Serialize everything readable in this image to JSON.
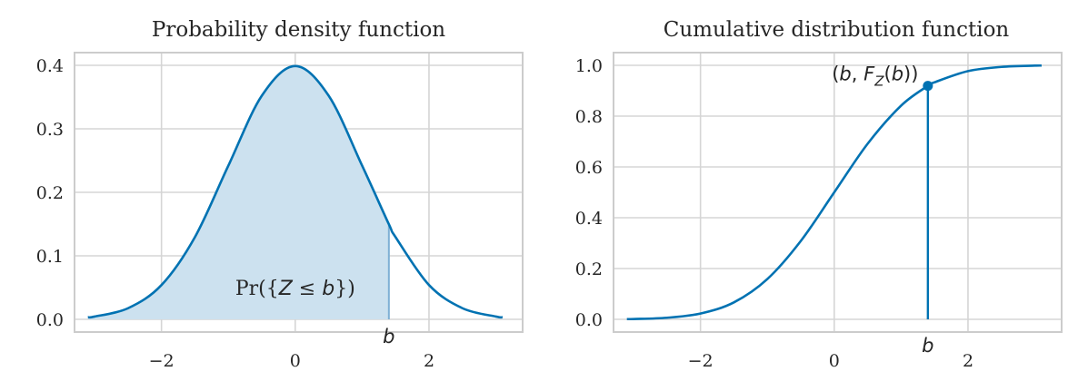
{
  "chart_data": [
    {
      "type": "area",
      "title": "Probability density function",
      "xlabel": "",
      "ylabel": "",
      "xlim": [
        -3.3,
        3.4
      ],
      "ylim": [
        -0.02,
        0.42
      ],
      "x_ticks": [
        -2,
        0,
        2
      ],
      "x_tick_labels": [
        "−2",
        "0",
        "2"
      ],
      "y_ticks": [
        0.0,
        0.1,
        0.2,
        0.3,
        0.4
      ],
      "y_tick_labels": [
        "0.0",
        "0.1",
        "0.2",
        "0.3",
        "0.4"
      ],
      "grid": true,
      "series": [
        {
          "x": [
            -3.1,
            -3.0,
            -2.5,
            -2.0,
            -1.5,
            -1.0,
            -0.5,
            0.0,
            0.5,
            1.0,
            1.4,
            1.5,
            2.0,
            2.5,
            3.0,
            3.1
          ],
          "values": [
            0.0033,
            0.0044,
            0.0175,
            0.054,
            0.1295,
            0.242,
            0.3521,
            0.3989,
            0.3521,
            0.242,
            0.1497,
            0.1295,
            0.054,
            0.0175,
            0.0044,
            0.0033
          ]
        }
      ],
      "shaded_region": {
        "x_from": -3.1,
        "x_to": 1.4,
        "label": "Pr({Z ≤ b})"
      },
      "marker_label": "b",
      "marker_x": 1.4,
      "color": "#0072b2",
      "fill_color": "#cce1ef"
    },
    {
      "type": "line",
      "title": "Cumulative distribution function",
      "xlabel": "",
      "ylabel": "",
      "xlim": [
        -3.3,
        3.4
      ],
      "ylim": [
        -0.05,
        1.05
      ],
      "x_ticks": [
        -2,
        0,
        2
      ],
      "x_tick_labels": [
        "−2",
        "0",
        "2"
      ],
      "y_ticks": [
        0.0,
        0.2,
        0.4,
        0.6,
        0.8,
        1.0
      ],
      "y_tick_labels": [
        "0.0",
        "0.2",
        "0.4",
        "0.6",
        "0.8",
        "1.0"
      ],
      "grid": true,
      "series": [
        {
          "x": [
            -3.1,
            -3.0,
            -2.5,
            -2.0,
            -1.5,
            -1.0,
            -0.5,
            0.0,
            0.5,
            1.0,
            1.4,
            1.5,
            2.0,
            2.5,
            3.0,
            3.1
          ],
          "values": [
            0.001,
            0.0013,
            0.0062,
            0.0228,
            0.0668,
            0.1587,
            0.3085,
            0.5,
            0.6915,
            0.8413,
            0.9192,
            0.9332,
            0.9772,
            0.9938,
            0.9987,
            0.999
          ]
        }
      ],
      "point": {
        "x": 1.4,
        "y": 0.9192,
        "label": "(b, F_Z(b))"
      },
      "marker_label": "b",
      "marker_x": 1.4,
      "color": "#0072b2"
    }
  ]
}
